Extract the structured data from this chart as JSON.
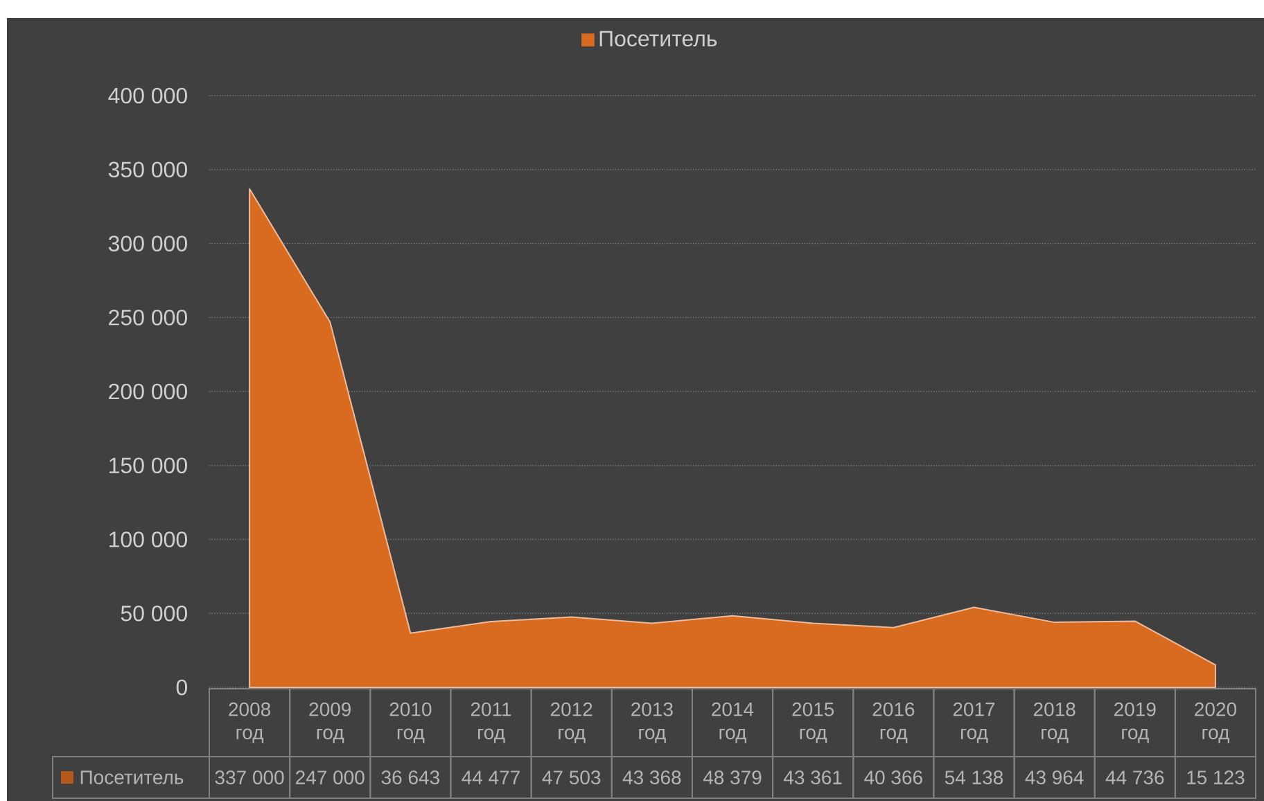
{
  "chart_data": {
    "type": "area",
    "categories": [
      "2008 год",
      "2009 год",
      "2010 год",
      "2011 год",
      "2012 год",
      "2013 год",
      "2014 год",
      "2015 год",
      "2016 год",
      "2017 год",
      "2018 год",
      "2019 год",
      "2020 год"
    ],
    "series": [
      {
        "name": "Посетитель",
        "color": "#d96b21",
        "values": [
          337000,
          247000,
          36643,
          44477,
          47503,
          43368,
          48379,
          43361,
          40366,
          54138,
          43964,
          44736,
          15123
        ],
        "value_labels": [
          "337 000",
          "247 000",
          "36 643",
          "44 477",
          "47 503",
          "43 368",
          "48 379",
          "43 361",
          "40 366",
          "54 138",
          "43 964",
          "44 736",
          "15 123"
        ]
      }
    ],
    "ylim": [
      0,
      400000
    ],
    "yticks": [
      0,
      {
        "value": 50000,
        "label": "50 000"
      },
      {
        "value": 100000,
        "label": "100 000"
      },
      {
        "value": 150000,
        "label": "150 000"
      },
      {
        "value": 200000,
        "label": "200 000"
      },
      {
        "value": 250000,
        "label": "250 000"
      },
      {
        "value": 300000,
        "label": "300 000"
      },
      {
        "value": 350000,
        "label": "350 000"
      },
      {
        "value": 400000,
        "label": "400 000"
      }
    ],
    "grid": "y",
    "legend": "top"
  }
}
